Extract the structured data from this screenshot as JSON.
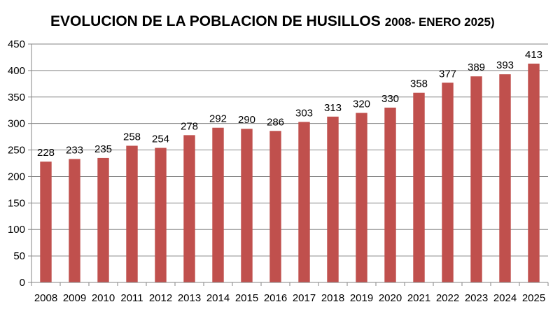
{
  "chart_data": {
    "type": "bar",
    "title": "EVOLUCION DE LA POBLACION DE HUSILLOS",
    "subtitle": "2008- ENERO 2025)",
    "xlabel": "",
    "ylabel": "",
    "categories": [
      "2008",
      "2009",
      "2010",
      "2011",
      "2012",
      "2013",
      "2014",
      "2015",
      "2016",
      "2017",
      "2018",
      "2019",
      "2020",
      "2021",
      "2022",
      "2023",
      "2024",
      "2025"
    ],
    "values": [
      228,
      233,
      235,
      258,
      254,
      278,
      292,
      290,
      286,
      303,
      313,
      320,
      330,
      358,
      377,
      389,
      393,
      413
    ],
    "ylim": [
      0,
      450
    ],
    "yticks": [
      0,
      50,
      100,
      150,
      200,
      250,
      300,
      350,
      400,
      450
    ],
    "grid": true,
    "legend": "none",
    "bar_color": "#c0504d",
    "grid_color": "#868686"
  }
}
